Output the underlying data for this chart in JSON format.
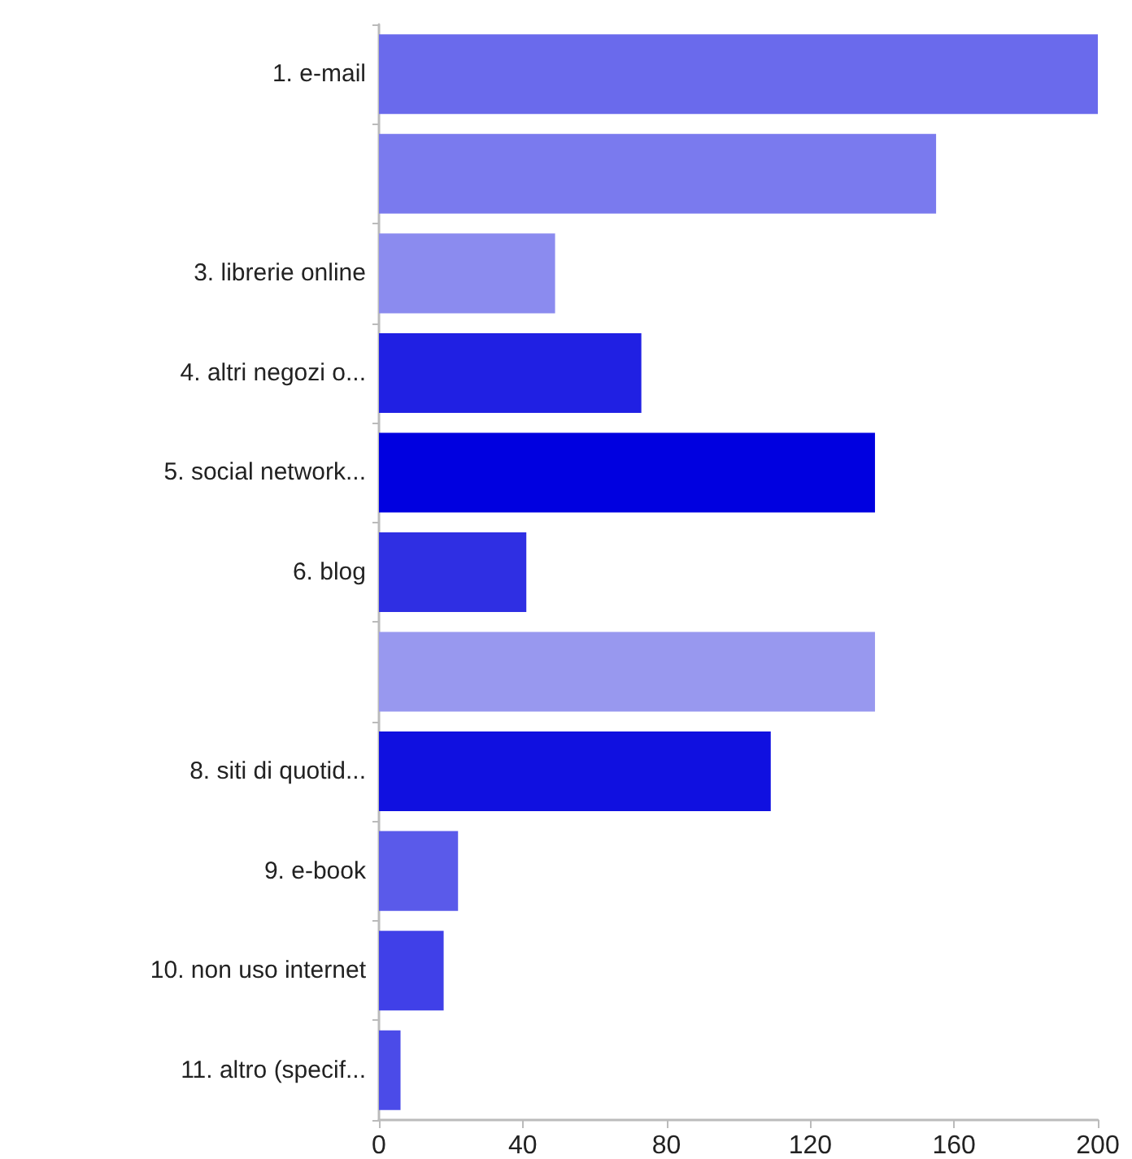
{
  "chart_data": {
    "type": "bar",
    "orientation": "horizontal",
    "categories": [
      "1. e-mail",
      null,
      "3. librerie online",
      "4. altri negozi o...",
      "5. social network...",
      "6. blog",
      null,
      "8. siti di quotid...",
      "9. e-book",
      "10. non uso internet",
      "11. altro (specif..."
    ],
    "values": [
      200,
      155,
      49,
      73,
      138,
      41,
      138,
      109,
      22,
      18,
      6
    ],
    "colors": [
      "#6a6aec",
      "#7a7aee",
      "#8b8bef",
      "#2020e3",
      "#0000e0",
      "#2f2fe3",
      "#9898ef",
      "#1010e0",
      "#5a5aea",
      "#4040e8",
      "#4b4be8"
    ],
    "xlim": [
      0,
      200
    ],
    "xticks": [
      0,
      40,
      80,
      120,
      160,
      200
    ],
    "grid": false
  }
}
